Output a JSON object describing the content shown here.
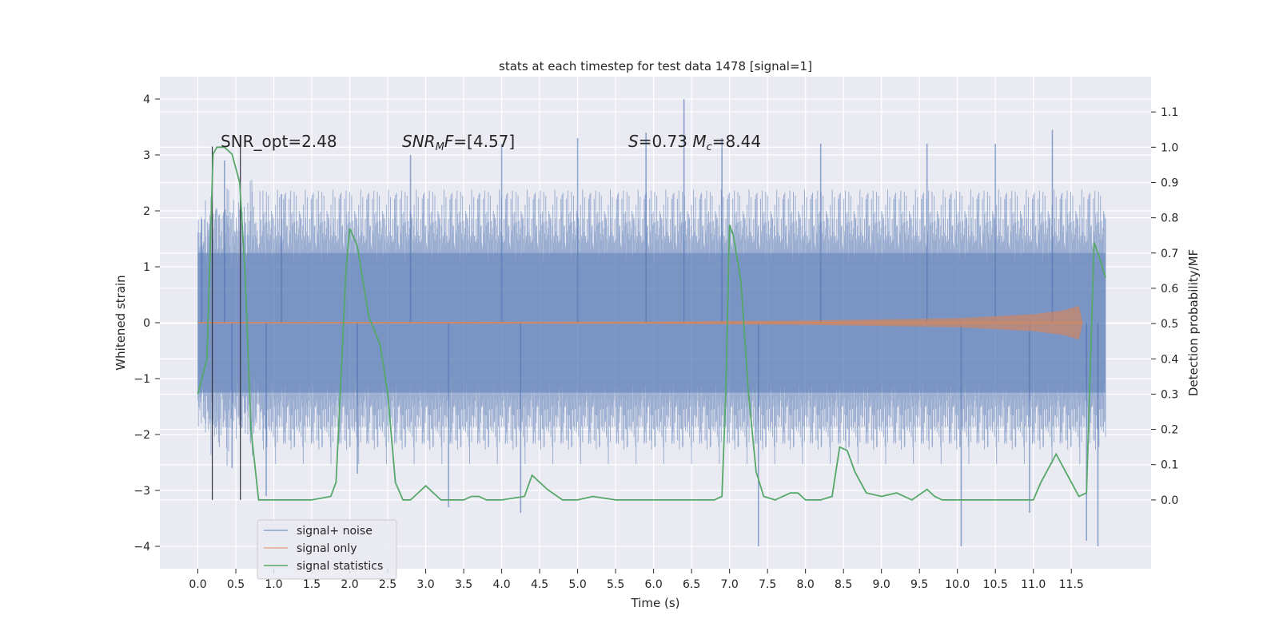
{
  "chart_data": {
    "type": "line",
    "title": "stats at each timestep for test data 1478 [signal=1]",
    "xlabel": "Time (s)",
    "ylabel_left": "Whitened strain",
    "ylabel_right": "Detection probability/MF",
    "xlim": [
      -0.5,
      12.55
    ],
    "ylim_left": [
      -4.4,
      4.4
    ],
    "ylim_right": [
      -0.195,
      1.2
    ],
    "grid": true,
    "legend_position": "lower-left",
    "x_ticks": [
      "0.0",
      "0.5",
      "1.0",
      "1.5",
      "2.0",
      "2.5",
      "3.0",
      "3.5",
      "4.0",
      "4.5",
      "5.0",
      "5.5",
      "6.0",
      "6.5",
      "7.0",
      "7.5",
      "8.0",
      "8.5",
      "9.0",
      "9.5",
      "10.0",
      "10.5",
      "11.0",
      "11.5"
    ],
    "y_ticks_left": [
      "4",
      "3",
      "2",
      "1",
      "0",
      "−1",
      "−2",
      "−3",
      "−4"
    ],
    "y_ticks_right": [
      "1.1",
      "1.0",
      "0.9",
      "0.8",
      "0.7",
      "0.6",
      "0.5",
      "0.4",
      "0.3",
      "0.2",
      "0.1",
      "0.0"
    ],
    "annotations": [
      {
        "text": "SNR_opt=2.48",
        "x": 0.2
      },
      {
        "text": "SNR_MF=[4.57]",
        "x": 2.6
      },
      {
        "text": "S=0.73   M_c=8.44",
        "x": 5.6
      }
    ],
    "vertical_markers": [
      0.19,
      0.56
    ],
    "series": [
      {
        "name": "signal+ noise",
        "color": "#4c72b0",
        "x_range": [
          0.0,
          11.95
        ],
        "envelope_typical": 2.1,
        "peaks": [
          [
            0.05,
            1.85
          ],
          [
            0.35,
            2.9
          ],
          [
            0.45,
            -2.6
          ],
          [
            0.9,
            -3.1
          ],
          [
            1.1,
            2.3
          ],
          [
            2.1,
            -2.7
          ],
          [
            2.8,
            3.0
          ],
          [
            3.3,
            -3.3
          ],
          [
            4.0,
            3.2
          ],
          [
            4.25,
            -3.4
          ],
          [
            5.0,
            3.3
          ],
          [
            5.9,
            3.4
          ],
          [
            6.4,
            4.0
          ],
          [
            6.9,
            3.3
          ],
          [
            7.38,
            -4.0
          ],
          [
            8.2,
            3.2
          ],
          [
            9.6,
            3.2
          ],
          [
            10.05,
            -4.0
          ],
          [
            10.5,
            3.2
          ],
          [
            10.95,
            -3.4
          ],
          [
            11.25,
            3.45
          ],
          [
            11.7,
            -3.9
          ],
          [
            11.85,
            -4.0
          ]
        ]
      },
      {
        "name": "signal only",
        "color": "#dd8452",
        "x_range": [
          0.0,
          11.65
        ],
        "envelope": [
          [
            0.0,
            0.01
          ],
          [
            6.0,
            0.02
          ],
          [
            8.0,
            0.04
          ],
          [
            10.0,
            0.08
          ],
          [
            11.0,
            0.15
          ],
          [
            11.4,
            0.22
          ],
          [
            11.6,
            0.3
          ],
          [
            11.65,
            0.0
          ]
        ]
      },
      {
        "name": "signal statistics",
        "color": "#55a868",
        "x": [
          0.0,
          0.12,
          0.2,
          0.25,
          0.35,
          0.45,
          0.55,
          0.62,
          0.7,
          0.8,
          0.9,
          1.2,
          1.5,
          1.75,
          1.82,
          1.95,
          2.0,
          2.1,
          2.25,
          2.4,
          2.5,
          2.6,
          2.7,
          2.8,
          3.0,
          3.2,
          3.5,
          3.6,
          3.7,
          3.8,
          4.0,
          4.3,
          4.4,
          4.5,
          4.6,
          4.8,
          5.0,
          5.2,
          5.5,
          6.0,
          6.5,
          6.8,
          6.9,
          6.95,
          7.0,
          7.05,
          7.15,
          7.25,
          7.35,
          7.45,
          7.6,
          7.8,
          7.9,
          8.0,
          8.2,
          8.35,
          8.45,
          8.55,
          8.65,
          8.8,
          9.0,
          9.2,
          9.4,
          9.6,
          9.7,
          9.8,
          10.0,
          10.5,
          11.0,
          11.1,
          11.3,
          11.4,
          11.5,
          11.6,
          11.7,
          11.8,
          11.85,
          11.95
        ],
        "y": [
          0.3,
          0.4,
          0.98,
          1.0,
          1.0,
          0.98,
          0.9,
          0.65,
          0.2,
          0.0,
          0.0,
          0.0,
          0.0,
          0.01,
          0.05,
          0.65,
          0.77,
          0.72,
          0.52,
          0.44,
          0.3,
          0.05,
          0.0,
          0.0,
          0.04,
          0.0,
          0.0,
          0.01,
          0.01,
          0.0,
          0.0,
          0.01,
          0.07,
          0.05,
          0.03,
          0.0,
          0.0,
          0.01,
          0.0,
          0.0,
          0.0,
          0.0,
          0.01,
          0.3,
          0.78,
          0.75,
          0.62,
          0.3,
          0.08,
          0.01,
          0.0,
          0.02,
          0.02,
          0.0,
          0.0,
          0.01,
          0.15,
          0.14,
          0.08,
          0.02,
          0.01,
          0.02,
          0.0,
          0.03,
          0.01,
          0.0,
          0.0,
          0.0,
          0.0,
          0.05,
          0.13,
          0.09,
          0.05,
          0.01,
          0.02,
          0.73,
          0.7,
          0.63
        ]
      }
    ]
  }
}
